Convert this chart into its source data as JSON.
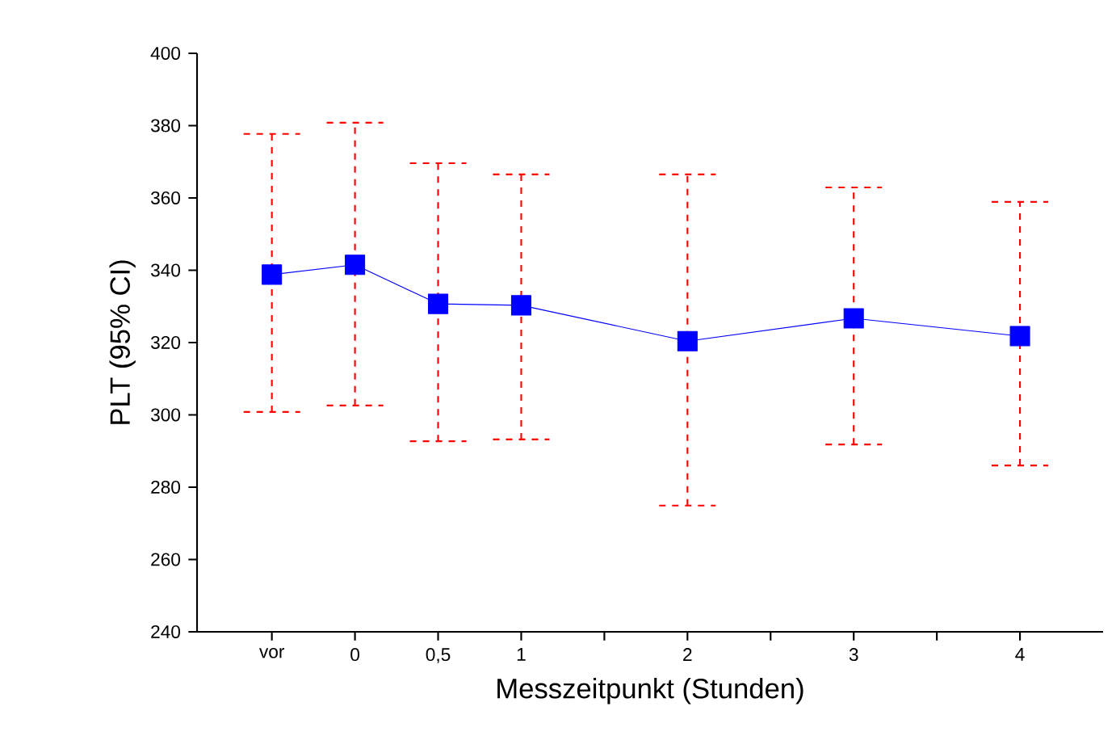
{
  "chart_data": {
    "type": "line",
    "xlabel": "Messzeitpunkt (Stunden)",
    "ylabel": "PLT (95% CI)",
    "x": [
      -0.5,
      0,
      0.5,
      1,
      2,
      3,
      4
    ],
    "series": [
      {
        "color": "#0000ff",
        "values": [
          338.8,
          341.5,
          330.7,
          330.3,
          320.4,
          326.7,
          321.8
        ],
        "errors": [
          [
            300.8,
            377.7
          ],
          [
            302.6,
            380.8
          ],
          [
            292.7,
            369.6
          ],
          [
            293.2,
            366.5
          ],
          [
            274.9,
            366.5
          ],
          [
            291.8,
            362.9
          ],
          [
            286,
            358.9
          ]
        ]
      }
    ],
    "xlim": [
      -0.95,
      4.5
    ],
    "xticks": [
      {
        "value": -0.5,
        "label": "vor"
      },
      0,
      {
        "value": 0.5,
        "label": "0,5"
      },
      1,
      {
        "value": 1.5,
        "label": null
      },
      2,
      {
        "value": 2.5,
        "label": null
      },
      3,
      {
        "value": 3.5,
        "label": null
      },
      4
    ],
    "ylim": [
      240,
      400
    ],
    "yticks": [
      240,
      260,
      280,
      300,
      320,
      340,
      360,
      380,
      400
    ],
    "grid": false,
    "marker": "square",
    "line_style": "solid"
  }
}
